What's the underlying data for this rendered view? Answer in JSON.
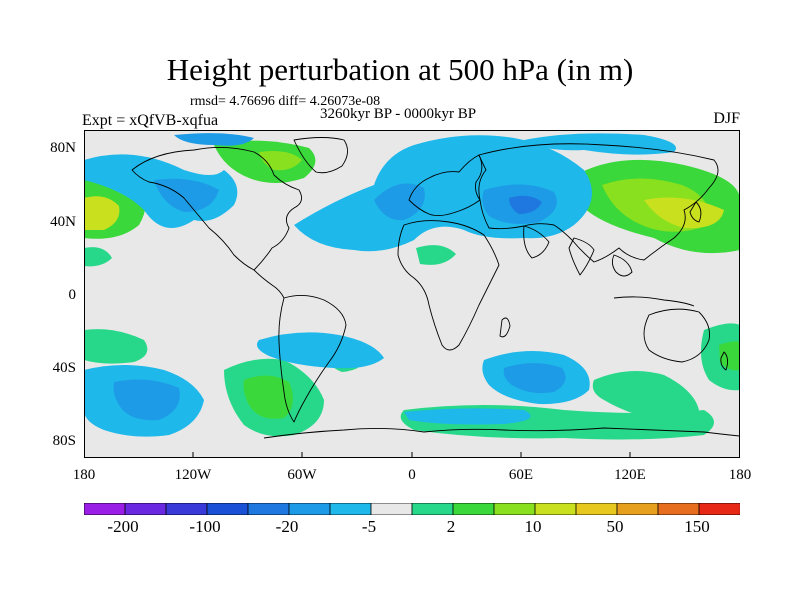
{
  "title": "Height perturbation at 500 hPa (in m)",
  "stats_line": "rmsd= 4.76696  diff= 4.26073e-08",
  "experiment": "Expt = xQfVB-xqfua",
  "period": "3260kyr BP - 0000kyr BP",
  "season": "DJF",
  "lat_labels": [
    "80N",
    "40N",
    "0",
    "40S",
    "80S"
  ],
  "lon_labels": [
    "180",
    "120W",
    "60W",
    "0",
    "60E",
    "120E",
    "180"
  ],
  "colorbar": {
    "labels": [
      "-200",
      "-100",
      "-20",
      "-5",
      "2",
      "10",
      "50",
      "150"
    ],
    "colors": [
      "#9b1ee6",
      "#6a28e0",
      "#3a3ad8",
      "#1a50d6",
      "#1e78e0",
      "#1e9be6",
      "#1eb8ea",
      "#e8e8e8",
      "#28d88a",
      "#3ad83a",
      "#88e01e",
      "#c8e01e",
      "#e6c81e",
      "#e6a01e",
      "#e66e1e",
      "#e62814"
    ]
  },
  "palette": {
    "background": "#e8e8e8",
    "neg_light": "#1eb8ea",
    "neg_mid": "#1e9be6",
    "neg_strong": "#1e78e0",
    "pos_light": "#28d88a",
    "pos_mid": "#3ad83a",
    "pos_strong": "#88e01e",
    "pos_stronger": "#c8e01e"
  }
}
